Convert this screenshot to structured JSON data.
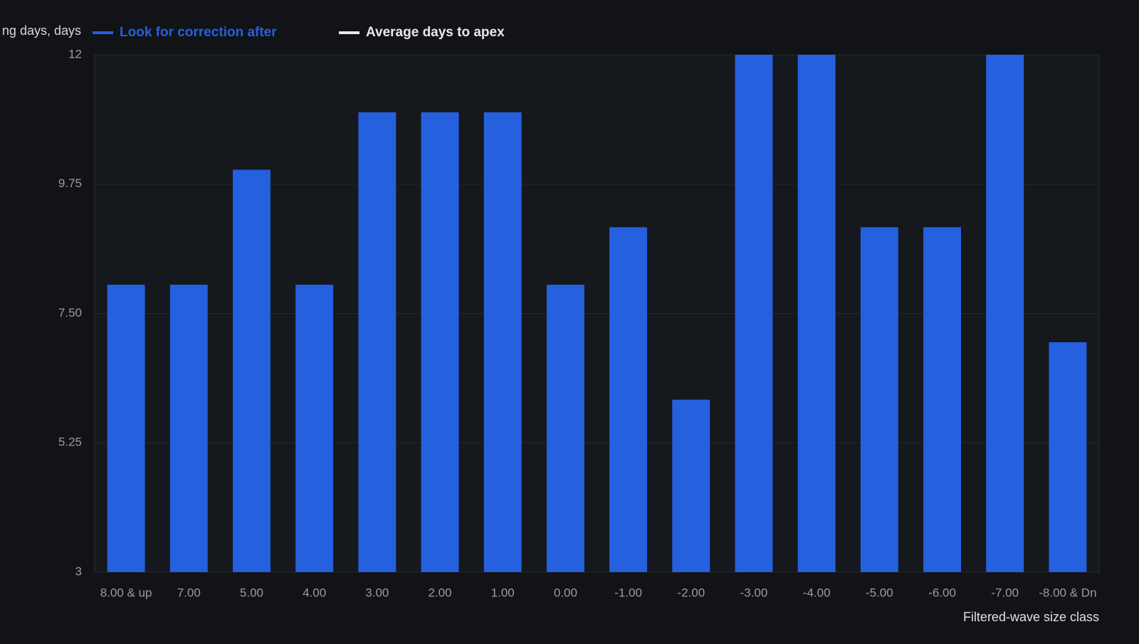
{
  "chart_data": {
    "type": "bar",
    "y_label": "ng days, days",
    "x_label": "Filtered-wave size class",
    "categories": [
      "8.00 & up",
      "7.00",
      "5.00",
      "4.00",
      "3.00",
      "2.00",
      "1.00",
      "0.00",
      "-1.00",
      "-2.00",
      "-3.00",
      "-4.00",
      "-5.00",
      "-6.00",
      "-7.00",
      "-8.00 & Dn"
    ],
    "series": [
      {
        "name": "Look for correction after",
        "color": "#2560de",
        "values": [
          8,
          8,
          10,
          8,
          11,
          11,
          11,
          8,
          9,
          6,
          12,
          12,
          9,
          9,
          12,
          7
        ]
      },
      {
        "name": "Average days to apex",
        "color": "#e8e8e8",
        "values": [
          null,
          null,
          null,
          null,
          null,
          null,
          null,
          null,
          null,
          null,
          null,
          null,
          null,
          null,
          null,
          null
        ]
      }
    ],
    "ylim": [
      3,
      12
    ],
    "yticks": [
      3,
      5.25,
      {
        "value": 7.5,
        "label": "7.50"
      },
      9.75,
      12
    ],
    "grid": true
  }
}
